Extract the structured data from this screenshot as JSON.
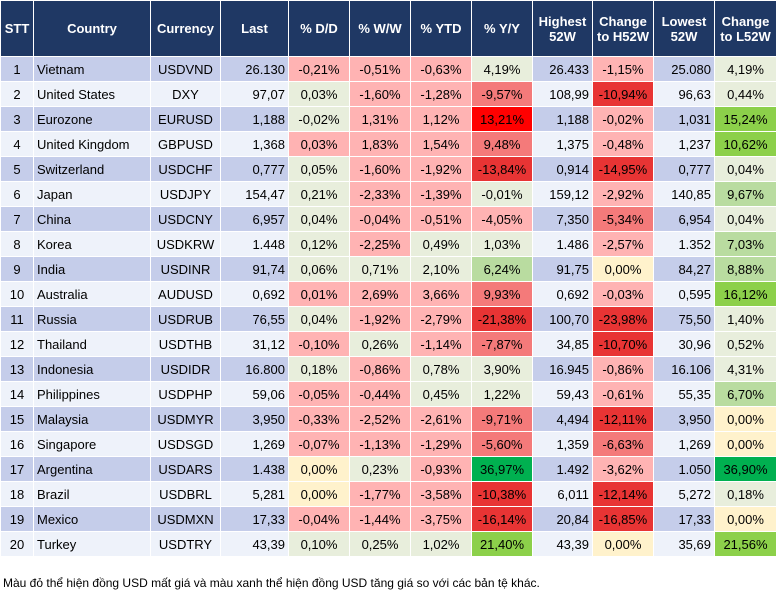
{
  "headers": [
    "STT",
    "Country",
    "Currency",
    "Last",
    "% D/D",
    "% W/W",
    "% YTD",
    "% Y/Y",
    "Highest 52W",
    "Change to H52W",
    "Lowest 52W",
    "Change to L52W"
  ],
  "colors": {
    "header": "#1f3864",
    "stripe_blue": "#c5cdea",
    "neutral": "#e8eedc",
    "light_red": "#ffb3b3",
    "medium_red": "#f47a7a",
    "strong_red": "#e83434",
    "bright_red": "#ff0000",
    "yellow": "#fff2cc",
    "light_green": "#b9dca0",
    "green": "#8cd04a",
    "dark_green": "#00b050"
  },
  "rows": [
    {
      "stt": "1",
      "country": "Vietnam",
      "currency": "USDVND",
      "last": "26.130",
      "dd": [
        "-0,21%",
        "lr"
      ],
      "ww": [
        "-0,51%",
        "lr"
      ],
      "ytd": [
        "-0,63%",
        "lr"
      ],
      "yy": [
        "4,19%",
        "n"
      ],
      "high": "26.433",
      "ch": [
        "-1,15%",
        "lr"
      ],
      "low": "25.080",
      "cl": [
        "4,19%",
        "n"
      ]
    },
    {
      "stt": "2",
      "country": "United States",
      "currency": "DXY",
      "last": "97,07",
      "dd": [
        "0,03%",
        "n"
      ],
      "ww": [
        "-1,60%",
        "lr"
      ],
      "ytd": [
        "-1,28%",
        "lr"
      ],
      "yy": [
        "-9,57%",
        "mr"
      ],
      "high": "108,99",
      "ch": [
        "-10,94%",
        "sr"
      ],
      "low": "96,63",
      "cl": [
        "0,44%",
        "n"
      ]
    },
    {
      "stt": "3",
      "country": "Eurozone",
      "currency": "EURUSD",
      "last": "1,188",
      "dd": [
        "-0,02%",
        "n"
      ],
      "ww": [
        "1,31%",
        "lr"
      ],
      "ytd": [
        "1,12%",
        "lr"
      ],
      "yy": [
        "13,21%",
        "rr"
      ],
      "high": "1,188",
      "ch": [
        "-0,02%",
        "lr"
      ],
      "low": "1,031",
      "cl": [
        "15,24%",
        "g2"
      ]
    },
    {
      "stt": "4",
      "country": "United Kingdom",
      "currency": "GBPUSD",
      "last": "1,368",
      "dd": [
        "0,03%",
        "lr"
      ],
      "ww": [
        "1,83%",
        "lr"
      ],
      "ytd": [
        "1,54%",
        "lr"
      ],
      "yy": [
        "9,48%",
        "mr"
      ],
      "high": "1,375",
      "ch": [
        "-0,48%",
        "lr"
      ],
      "low": "1,237",
      "cl": [
        "10,62%",
        "g2"
      ]
    },
    {
      "stt": "5",
      "country": "Switzerland",
      "currency": "USDCHF",
      "last": "0,777",
      "dd": [
        "0,05%",
        "n"
      ],
      "ww": [
        "-1,60%",
        "lr"
      ],
      "ytd": [
        "-1,92%",
        "lr"
      ],
      "yy": [
        "-13,84%",
        "sr"
      ],
      "high": "0,914",
      "ch": [
        "-14,95%",
        "sr"
      ],
      "low": "0,777",
      "cl": [
        "0,04%",
        "n"
      ]
    },
    {
      "stt": "6",
      "country": "Japan",
      "currency": "USDJPY",
      "last": "154,47",
      "dd": [
        "0,21%",
        "n"
      ],
      "ww": [
        "-2,33%",
        "lr"
      ],
      "ytd": [
        "-1,39%",
        "lr"
      ],
      "yy": [
        "-0,01%",
        "n"
      ],
      "high": "159,12",
      "ch": [
        "-2,92%",
        "lr"
      ],
      "low": "140,85",
      "cl": [
        "9,67%",
        "g1"
      ]
    },
    {
      "stt": "7",
      "country": "China",
      "currency": "USDCNY",
      "last": "6,957",
      "dd": [
        "0,04%",
        "n"
      ],
      "ww": [
        "-0,04%",
        "lr"
      ],
      "ytd": [
        "-0,51%",
        "lr"
      ],
      "yy": [
        "-4,05%",
        "lr"
      ],
      "high": "7,350",
      "ch": [
        "-5,34%",
        "mr"
      ],
      "low": "6,954",
      "cl": [
        "0,04%",
        "n"
      ]
    },
    {
      "stt": "8",
      "country": "Korea",
      "currency": "USDKRW",
      "last": "1.448",
      "dd": [
        "0,12%",
        "n"
      ],
      "ww": [
        "-2,25%",
        "lr"
      ],
      "ytd": [
        "0,49%",
        "n"
      ],
      "yy": [
        "1,03%",
        "n"
      ],
      "high": "1.486",
      "ch": [
        "-2,57%",
        "lr"
      ],
      "low": "1.352",
      "cl": [
        "7,03%",
        "g1"
      ]
    },
    {
      "stt": "9",
      "country": "India",
      "currency": "USDINR",
      "last": "91,74",
      "dd": [
        "0,06%",
        "n"
      ],
      "ww": [
        "0,71%",
        "n"
      ],
      "ytd": [
        "2,10%",
        "n"
      ],
      "yy": [
        "6,24%",
        "g1"
      ],
      "high": "91,75",
      "ch": [
        "0,00%",
        "y"
      ],
      "low": "84,27",
      "cl": [
        "8,88%",
        "g1"
      ]
    },
    {
      "stt": "10",
      "country": "Australia",
      "currency": "AUDUSD",
      "last": "0,692",
      "dd": [
        "0,01%",
        "lr"
      ],
      "ww": [
        "2,69%",
        "lr"
      ],
      "ytd": [
        "3,66%",
        "lr"
      ],
      "yy": [
        "9,93%",
        "mr"
      ],
      "high": "0,692",
      "ch": [
        "-0,03%",
        "lr"
      ],
      "low": "0,595",
      "cl": [
        "16,12%",
        "g2"
      ]
    },
    {
      "stt": "11",
      "country": "Russia",
      "currency": "USDRUB",
      "last": "76,55",
      "dd": [
        "0,04%",
        "n"
      ],
      "ww": [
        "-1,92%",
        "lr"
      ],
      "ytd": [
        "-2,79%",
        "lr"
      ],
      "yy": [
        "-21,38%",
        "sr"
      ],
      "high": "100,70",
      "ch": [
        "-23,98%",
        "sr"
      ],
      "low": "75,50",
      "cl": [
        "1,40%",
        "n"
      ]
    },
    {
      "stt": "12",
      "country": "Thailand",
      "currency": "USDTHB",
      "last": "31,12",
      "dd": [
        "-0,10%",
        "lr"
      ],
      "ww": [
        "0,26%",
        "n"
      ],
      "ytd": [
        "-1,14%",
        "lr"
      ],
      "yy": [
        "-7,87%",
        "mr"
      ],
      "high": "34,85",
      "ch": [
        "-10,70%",
        "sr"
      ],
      "low": "30,96",
      "cl": [
        "0,52%",
        "n"
      ]
    },
    {
      "stt": "13",
      "country": "Indonesia",
      "currency": "USDIDR",
      "last": "16.800",
      "dd": [
        "0,18%",
        "n"
      ],
      "ww": [
        "-0,86%",
        "lr"
      ],
      "ytd": [
        "0,78%",
        "n"
      ],
      "yy": [
        "3,90%",
        "n"
      ],
      "high": "16.945",
      "ch": [
        "-0,86%",
        "lr"
      ],
      "low": "16.106",
      "cl": [
        "4,31%",
        "n"
      ]
    },
    {
      "stt": "14",
      "country": "Philippines",
      "currency": "USDPHP",
      "last": "59,06",
      "dd": [
        "-0,05%",
        "lr"
      ],
      "ww": [
        "-0,44%",
        "lr"
      ],
      "ytd": [
        "0,45%",
        "n"
      ],
      "yy": [
        "1,22%",
        "n"
      ],
      "high": "59,43",
      "ch": [
        "-0,61%",
        "lr"
      ],
      "low": "55,35",
      "cl": [
        "6,70%",
        "g1"
      ]
    },
    {
      "stt": "15",
      "country": "Malaysia",
      "currency": "USDMYR",
      "last": "3,950",
      "dd": [
        "-0,33%",
        "lr"
      ],
      "ww": [
        "-2,52%",
        "lr"
      ],
      "ytd": [
        "-2,61%",
        "lr"
      ],
      "yy": [
        "-9,71%",
        "mr"
      ],
      "high": "4,494",
      "ch": [
        "-12,11%",
        "sr"
      ],
      "low": "3,950",
      "cl": [
        "0,00%",
        "y"
      ]
    },
    {
      "stt": "16",
      "country": "Singapore",
      "currency": "USDSGD",
      "last": "1,269",
      "dd": [
        "-0,07%",
        "lr"
      ],
      "ww": [
        "-1,13%",
        "lr"
      ],
      "ytd": [
        "-1,29%",
        "lr"
      ],
      "yy": [
        "-5,60%",
        "mr"
      ],
      "high": "1,359",
      "ch": [
        "-6,63%",
        "mr"
      ],
      "low": "1,269",
      "cl": [
        "0,00%",
        "y"
      ]
    },
    {
      "stt": "17",
      "country": "Argentina",
      "currency": "USDARS",
      "last": "1.438",
      "dd": [
        "0,00%",
        "y"
      ],
      "ww": [
        "0,23%",
        "n"
      ],
      "ytd": [
        "-0,93%",
        "lr"
      ],
      "yy": [
        "36,97%",
        "g3"
      ],
      "high": "1.492",
      "ch": [
        "-3,62%",
        "lr"
      ],
      "low": "1.050",
      "cl": [
        "36,90%",
        "g3"
      ]
    },
    {
      "stt": "18",
      "country": "Brazil",
      "currency": "USDBRL",
      "last": "5,281",
      "dd": [
        "0,00%",
        "y"
      ],
      "ww": [
        "-1,77%",
        "lr"
      ],
      "ytd": [
        "-3,58%",
        "lr"
      ],
      "yy": [
        "-10,38%",
        "sr"
      ],
      "high": "6,011",
      "ch": [
        "-12,14%",
        "sr"
      ],
      "low": "5,272",
      "cl": [
        "0,18%",
        "n"
      ]
    },
    {
      "stt": "19",
      "country": "Mexico",
      "currency": "USDMXN",
      "last": "17,33",
      "dd": [
        "-0,04%",
        "lr"
      ],
      "ww": [
        "-1,44%",
        "lr"
      ],
      "ytd": [
        "-3,75%",
        "lr"
      ],
      "yy": [
        "-16,14%",
        "sr"
      ],
      "high": "20,84",
      "ch": [
        "-16,85%",
        "sr"
      ],
      "low": "17,33",
      "cl": [
        "0,00%",
        "y"
      ]
    },
    {
      "stt": "20",
      "country": "Turkey",
      "currency": "USDTRY",
      "last": "43,39",
      "dd": [
        "0,10%",
        "n"
      ],
      "ww": [
        "0,25%",
        "n"
      ],
      "ytd": [
        "1,02%",
        "n"
      ],
      "yy": [
        "21,40%",
        "g2"
      ],
      "high": "43,39",
      "ch": [
        "0,00%",
        "y"
      ],
      "low": "35,69",
      "cl": [
        "21,56%",
        "g2"
      ]
    }
  ],
  "footer": "Màu đỏ thể hiện đồng USD mất giá và màu xanh thể hiện đồng USD tăng giá so với các bản tệ khác."
}
